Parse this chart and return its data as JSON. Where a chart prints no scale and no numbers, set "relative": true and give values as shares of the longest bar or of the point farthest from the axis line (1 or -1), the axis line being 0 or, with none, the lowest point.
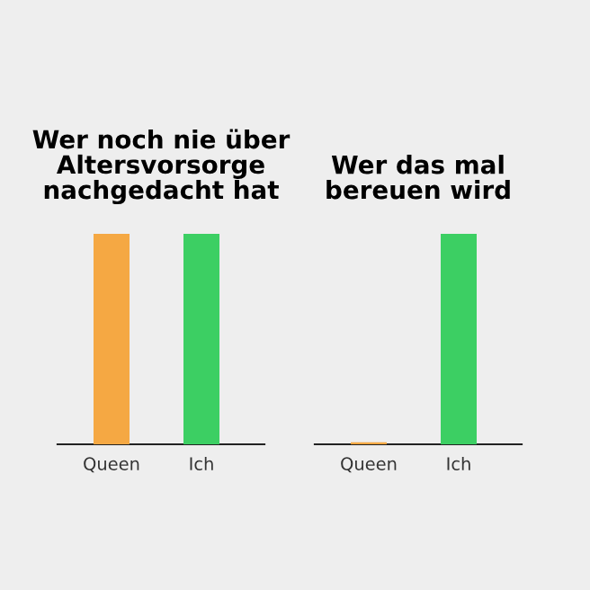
{
  "chart_data": [
    {
      "type": "bar",
      "title": "Wer noch nie über\nAltersvorsorge\nnachgedacht hat",
      "categories": [
        "Queen",
        "Ich"
      ],
      "values": [
        1,
        1
      ],
      "colors": [
        "#f5a843",
        "#3ccf63"
      ],
      "relative": true,
      "grid": false,
      "legend": false
    },
    {
      "type": "bar",
      "title": "Wer das mal\nbereuen wird",
      "categories": [
        "Queen",
        "Ich"
      ],
      "values": [
        0.01,
        1
      ],
      "colors": [
        "#f5a843",
        "#3ccf63"
      ],
      "relative": true,
      "grid": false,
      "legend": false
    }
  ]
}
